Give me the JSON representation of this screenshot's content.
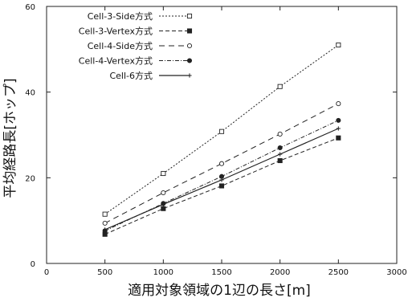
{
  "chart_data": {
    "type": "line",
    "title": "",
    "xlabel": "適用対象領域の1辺の長さ[m]",
    "ylabel": "平均経路長[ホップ]",
    "xlim": [
      0,
      3000
    ],
    "ylim": [
      0,
      60
    ],
    "xticks": [
      0,
      500,
      1000,
      1500,
      2000,
      2500,
      3000
    ],
    "yticks": [
      0,
      20,
      40,
      60
    ],
    "grid": false,
    "legend_position": "top-left",
    "x": [
      500,
      1000,
      1500,
      2000,
      2500
    ],
    "series": [
      {
        "name": "Cell-3-Side方式",
        "values": [
          11.5,
          21.0,
          30.8,
          41.3,
          51.0
        ],
        "dash": "2,2",
        "marker": "square-open",
        "color": "#222222"
      },
      {
        "name": "Cell-3-Vertex方式",
        "values": [
          6.8,
          12.8,
          18.1,
          24.0,
          29.3
        ],
        "dash": "5,3",
        "marker": "square-filled",
        "color": "#222222"
      },
      {
        "name": "Cell-4-Side方式",
        "values": [
          9.4,
          16.5,
          23.3,
          30.2,
          37.3
        ],
        "dash": "7,5",
        "marker": "circle-open",
        "color": "#222222"
      },
      {
        "name": "Cell-4-Vertex方式",
        "values": [
          7.6,
          14.0,
          20.3,
          27.0,
          33.4
        ],
        "dash": "5,2,1,2",
        "marker": "circle-filled",
        "color": "#222222"
      },
      {
        "name": "Cell-6方式",
        "values": [
          7.9,
          13.8,
          19.5,
          25.5,
          31.5
        ],
        "dash": "",
        "marker": "plus",
        "color": "#222222"
      }
    ]
  }
}
